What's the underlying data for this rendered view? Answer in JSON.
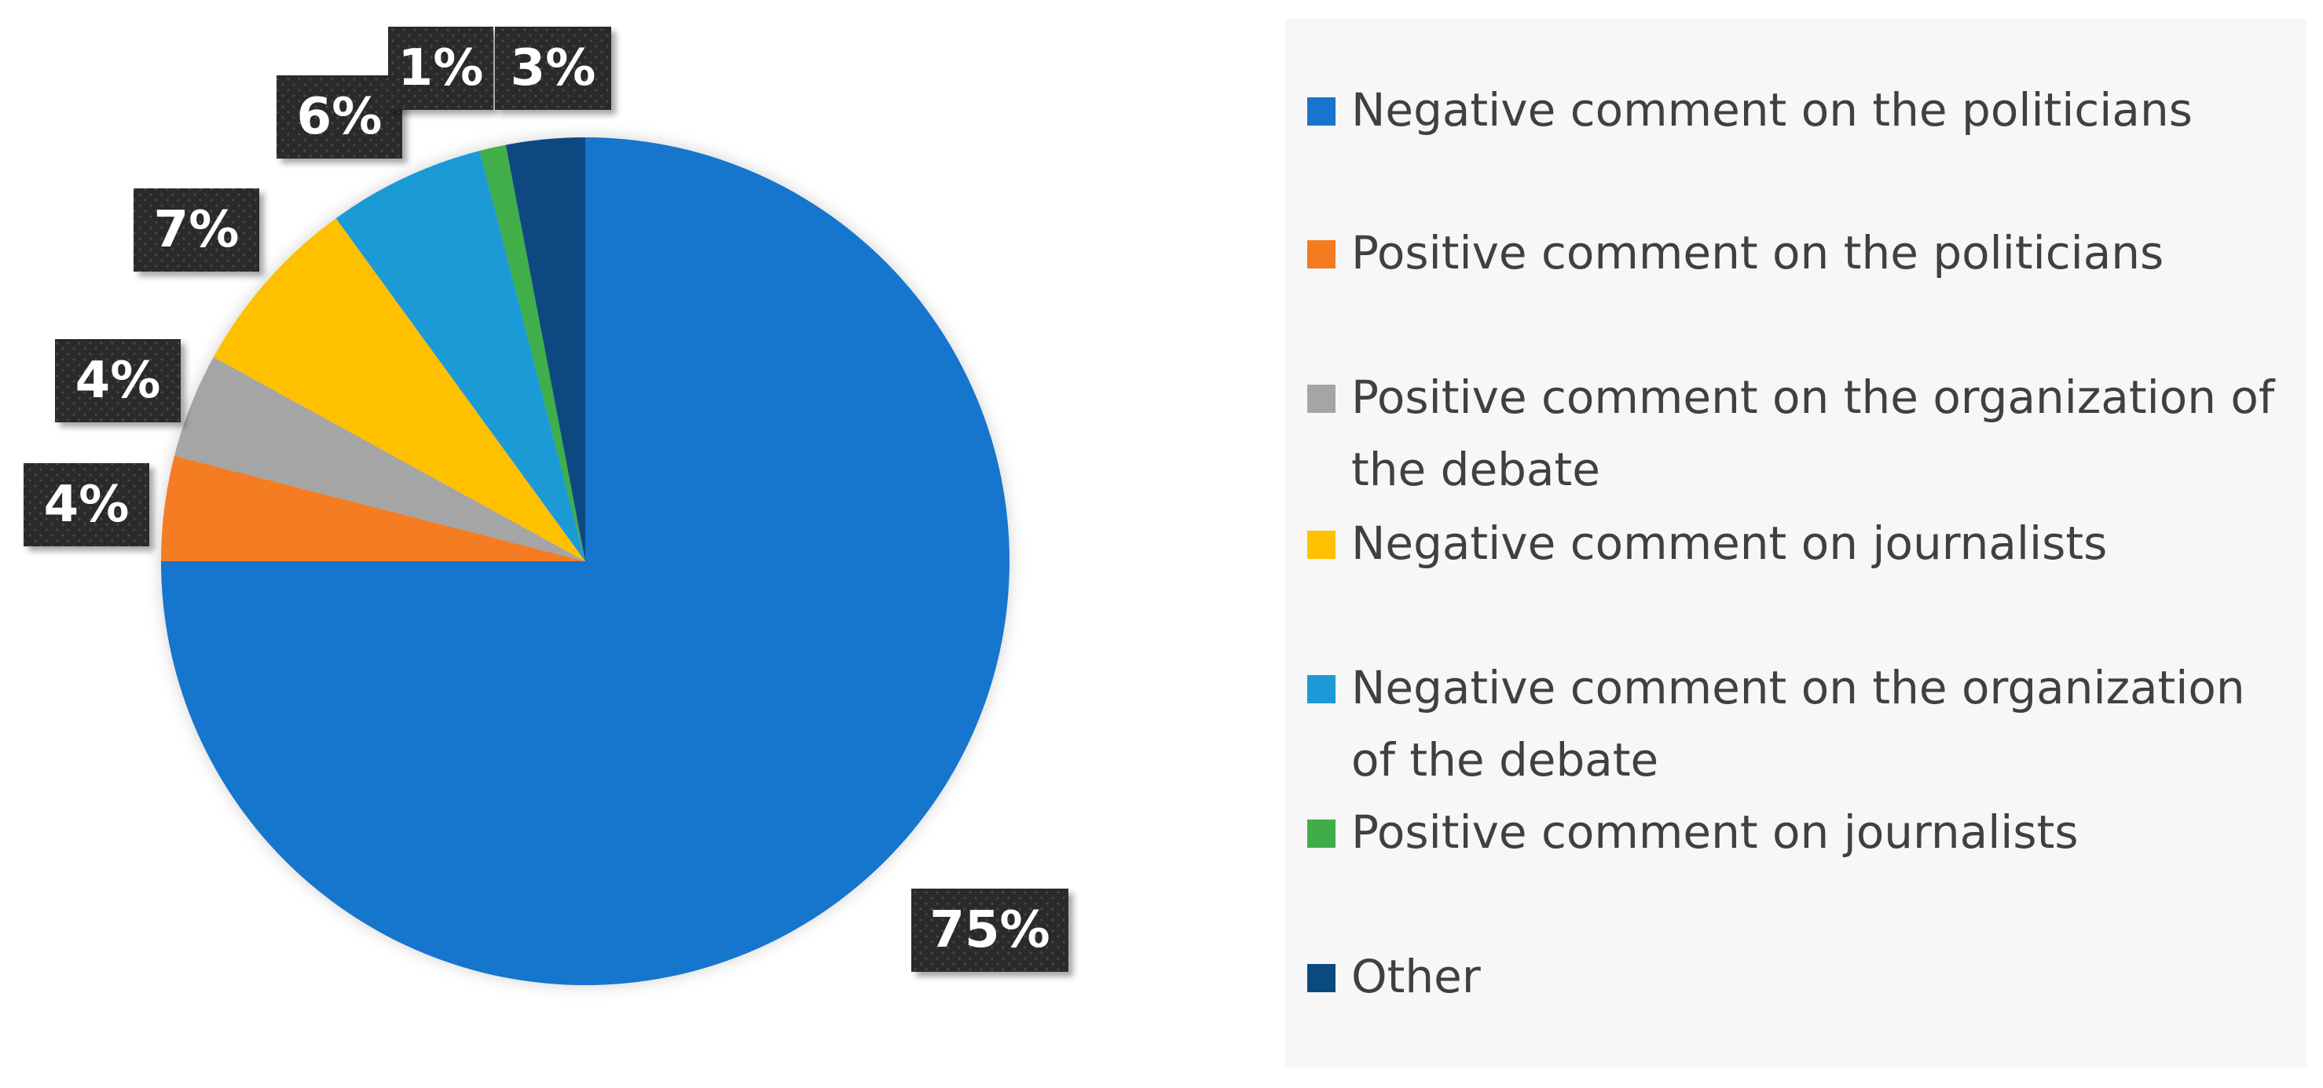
{
  "chart_data": {
    "type": "pie",
    "title": "",
    "categories": [
      "Negative comment on the politicians",
      "Positive comment on the politicians",
      "Positive comment on the organization of the debate",
      "Negative comment on journalists",
      "Negative comment on the organization of the debate",
      "Positive comment on journalists",
      "Other"
    ],
    "values": [
      75,
      4,
      4,
      7,
      6,
      1,
      3
    ],
    "data_labels": [
      "75%",
      "4%",
      "4%",
      "7%",
      "6%",
      "1%",
      "3%"
    ],
    "colors": [
      "#1874cd",
      "#f47b20",
      "#a5a5a5",
      "#ffc000",
      "#1c9ad6",
      "#3fae49",
      "#0b4a80"
    ],
    "start_angle_deg": 0,
    "direction": "clockwise",
    "legend": {
      "position": "right",
      "labels": [
        "Negative comment on the politicians",
        "Positive comment on the politicians",
        "Positive comment on the organization of the debate",
        "Negative comment on journalists",
        "Negative comment on the organization of the debate",
        "Positive comment on journalists",
        "Other"
      ]
    }
  }
}
